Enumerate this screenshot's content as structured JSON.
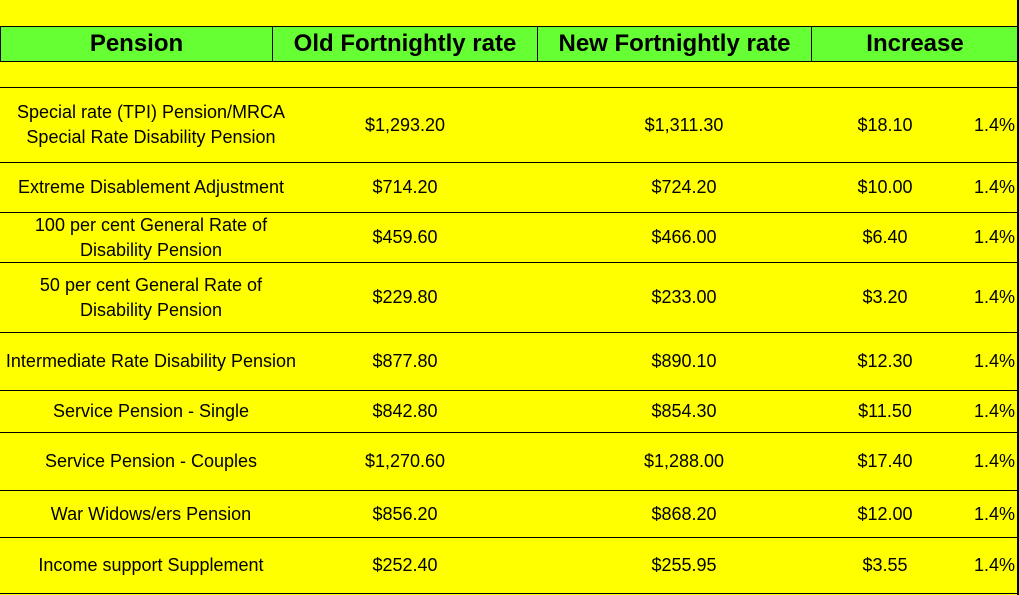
{
  "table": {
    "headers": {
      "pension": "Pension",
      "old_rate": "Old Fortnightly rate",
      "new_rate": "New Fortnightly rate",
      "increase": "Increase"
    },
    "rows": [
      {
        "name": "Special rate (TPI) Pension/MRCA Special Rate Disability Pension",
        "old": "$1,293.20",
        "new": "$1,311.30",
        "increase": "$18.10",
        "percent": "1.4%"
      },
      {
        "name": "Extreme Disablement Adjustment",
        "old": "$714.20",
        "new": "$724.20",
        "increase": "$10.00",
        "percent": "1.4%"
      },
      {
        "name": "100 per cent General Rate of Disability Pension",
        "old": "$459.60",
        "new": "$466.00",
        "increase": "$6.40",
        "percent": "1.4%"
      },
      {
        "name": "50 per cent General Rate of Disability Pension",
        "old": "$229.80",
        "new": "$233.00",
        "increase": "$3.20",
        "percent": "1.4%"
      },
      {
        "name": "Intermediate Rate Disability Pension",
        "old": "$877.80",
        "new": "$890.10",
        "increase": "$12.30",
        "percent": "1.4%"
      },
      {
        "name": "Service Pension - Single",
        "old": "$842.80",
        "new": "$854.30",
        "increase": "$11.50",
        "percent": "1.4%"
      },
      {
        "name": "Service Pension - Couples",
        "old": "$1,270.60",
        "new": "$1,288.00",
        "increase": "$17.40",
        "percent": "1.4%"
      },
      {
        "name": "War Widows/ers Pension",
        "old": "$856.20",
        "new": "$868.20",
        "increase": "$12.00",
        "percent": "1.4%"
      },
      {
        "name": "Income support Supplement",
        "old": "$252.40",
        "new": "$255.95",
        "increase": "$3.55",
        "percent": "1.4%"
      }
    ]
  },
  "colors": {
    "background": "#FFFF00",
    "header_background": "#66FF33",
    "grid_lines": "#000000"
  }
}
